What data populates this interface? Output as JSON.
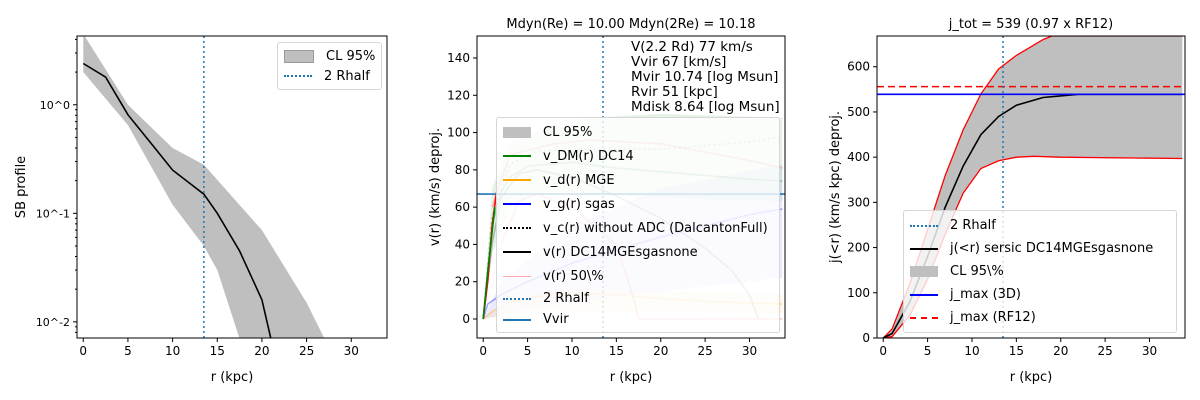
{
  "chart_data": [
    {
      "type": "line",
      "title": "",
      "xlabel": "r (kpc)",
      "ylabel": "SB profile",
      "yscale": "log",
      "xlim": [
        -0.7,
        34
      ],
      "ylim": [
        0.0071,
        4.3
      ],
      "xticks": [
        0,
        5,
        10,
        15,
        20,
        25,
        30
      ],
      "yticks": [
        {
          "v": 1,
          "label": "10^0"
        },
        {
          "v": 0.1,
          "label": "10^-1"
        },
        {
          "v": 0.01,
          "label": "10^-2"
        }
      ],
      "legend": {
        "placement": "top-right",
        "entries": [
          "CL 95%",
          "2 Rhalf"
        ]
      },
      "band": {
        "name": "CL 95%",
        "color": "#bfbfbf",
        "upper": [
          [
            0,
            4.5
          ],
          [
            5,
            1.0
          ],
          [
            10,
            0.4
          ],
          [
            13.5,
            0.28
          ],
          [
            20,
            0.07
          ],
          [
            25,
            0.015
          ],
          [
            27,
            0.007
          ]
        ],
        "lower": [
          [
            0,
            2.0
          ],
          [
            5,
            0.65
          ],
          [
            10,
            0.12
          ],
          [
            13.5,
            0.05
          ],
          [
            15,
            0.03
          ],
          [
            17.5,
            0.007
          ]
        ]
      },
      "series": [
        {
          "color": "#000000",
          "style": "solid",
          "points": [
            [
              0,
              2.4
            ],
            [
              2.5,
              1.8
            ],
            [
              5,
              0.81
            ],
            [
              7.5,
              0.45
            ],
            [
              10,
              0.25
            ],
            [
              13.5,
              0.15
            ],
            [
              15,
              0.1
            ],
            [
              17.5,
              0.045
            ],
            [
              20,
              0.016
            ],
            [
              21,
              0.007
            ]
          ]
        }
      ],
      "vlines": [
        {
          "name": "2 Rhalf",
          "x": 13.5,
          "color": "#1f77b4",
          "style": "dotted"
        }
      ]
    },
    {
      "type": "line",
      "title": "Mdyn(Re) = 10.00  Mdyn(2Re) = 10.18",
      "xlabel": "r (kpc)",
      "ylabel": "v(r) (km/s) deproj.",
      "xlim": [
        -0.7,
        34
      ],
      "ylim": [
        -10.2,
        151.8
      ],
      "xticks": [
        0,
        5,
        10,
        15,
        20,
        25,
        30
      ],
      "yticks": [
        0,
        20,
        40,
        60,
        80,
        100,
        120,
        140
      ],
      "annotations": [
        "V(2.2 Rd) 77 km/s",
        "Vvir 67 [km/s]",
        "Mvir 10.74 [log Msun]",
        "Rvir 51 [kpc]",
        "Mdisk 8.64 [log Msun]"
      ],
      "legend": {
        "placement": "center-left",
        "entries": [
          "CL 95%",
          "v_DM(r) DC14",
          "v_d(r) MGE",
          "v_g(r) sgas",
          "v_c(r) without ADC (DalcantonFull)",
          "v(r) DC14MGEsgasnone",
          "v(r) 50\\%",
          "2 Rhalf",
          "Vvir"
        ]
      },
      "bands": [
        {
          "color": "#008000",
          "opacity": 0.1,
          "upper": [
            [
              0,
              0
            ],
            [
              1,
              70
            ],
            [
              3,
              95
            ],
            [
              8,
              104
            ],
            [
              12,
              108
            ],
            [
              20,
              110
            ],
            [
              33.7,
              108
            ]
          ],
          "lower": [
            [
              0,
              0
            ],
            [
              1,
              35
            ],
            [
              3,
              60
            ],
            [
              6,
              68
            ],
            [
              10,
              68
            ],
            [
              20,
              65
            ],
            [
              33.7,
              63
            ]
          ]
        },
        {
          "color": "#0000ff",
          "opacity": 0.08,
          "upper": [
            [
              0,
              0
            ],
            [
              2,
              20
            ],
            [
              10,
              50
            ],
            [
              20,
              70
            ],
            [
              33.7,
              83
            ]
          ],
          "lower": [
            [
              0,
              0
            ],
            [
              5,
              5
            ],
            [
              15,
              12
            ],
            [
              33.7,
              22
            ]
          ]
        },
        {
          "color": "#ffa500",
          "opacity": 0.1,
          "upper": [
            [
              0,
              0
            ],
            [
              3,
              12
            ],
            [
              10,
              17
            ],
            [
              20,
              15
            ],
            [
              33.7,
              13
            ]
          ],
          "lower": [
            [
              0,
              0
            ],
            [
              5,
              4
            ],
            [
              20,
              4
            ],
            [
              33.7,
              3
            ]
          ]
        }
      ],
      "series": [
        {
          "name": "v_DM(r) DC14",
          "color": "#008000",
          "style": "solid",
          "opacity": 0.35,
          "points": [
            [
              0,
              0
            ],
            [
              1,
              50
            ],
            [
              2,
              68
            ],
            [
              3,
              76
            ],
            [
              5,
              82
            ],
            [
              10,
              84
            ],
            [
              15,
              81
            ],
            [
              20,
              79
            ],
            [
              25,
              77
            ],
            [
              30,
              75
            ],
            [
              33.7,
              74
            ]
          ]
        },
        {
          "name": "v_d(r) MGE",
          "color": "#ffa500",
          "style": "solid",
          "opacity": 0.35,
          "points": [
            [
              0,
              0
            ],
            [
              1,
              4
            ],
            [
              3,
              9
            ],
            [
              6,
              12
            ],
            [
              10,
              14
            ],
            [
              15,
              13
            ],
            [
              20,
              11
            ],
            [
              25,
              9.5
            ],
            [
              30,
              8.5
            ],
            [
              33.7,
              8
            ]
          ]
        },
        {
          "name": "v_g(r) sgas",
          "color": "#0000ff",
          "style": "solid",
          "opacity": 0.35,
          "points": [
            [
              0,
              0
            ],
            [
              0.5,
              8
            ],
            [
              2,
              13
            ],
            [
              5,
              20
            ],
            [
              10,
              30
            ],
            [
              15,
              37
            ],
            [
              20,
              44
            ],
            [
              25,
              50
            ],
            [
              30,
              56
            ],
            [
              33.7,
              59
            ]
          ]
        },
        {
          "name": "v_c(r) without ADC (DalcantonFull)",
          "color": "#888888",
          "style": "dotted",
          "opacity": 0.6,
          "points": [
            [
              0,
              0
            ],
            [
              1,
              55
            ],
            [
              3,
              83
            ],
            [
              6,
              90
            ],
            [
              10,
              91
            ],
            [
              20,
              91
            ],
            [
              30,
              95
            ],
            [
              33.7,
              98
            ]
          ]
        },
        {
          "name": "v(r) DC14MGEsgasnone",
          "color": "#000000",
          "style": "solid",
          "opacity": 0.25,
          "points": [
            [
              0,
              0
            ],
            [
              1,
              40
            ],
            [
              2,
              65
            ],
            [
              4,
              78
            ],
            [
              6,
              80
            ],
            [
              10,
              76
            ],
            [
              15,
              66
            ],
            [
              20,
              54
            ],
            [
              25,
              38
            ],
            [
              28,
              26
            ],
            [
              30,
              13
            ],
            [
              31,
              0
            ]
          ]
        },
        {
          "name": "v(r) 50\\% upper",
          "color": "#ff0000",
          "style": "solid",
          "opacity": 0.25,
          "points": [
            [
              1,
              60
            ],
            [
              3,
              88
            ],
            [
              8,
              94
            ],
            [
              12,
              96
            ],
            [
              20,
              94
            ],
            [
              30,
              85
            ],
            [
              33.7,
              81
            ]
          ]
        },
        {
          "name": "v(r) 50\\% lower",
          "color": "#ff0000",
          "style": "solid",
          "opacity": 0.25,
          "points": [
            [
              2,
              40
            ],
            [
              4,
              63
            ],
            [
              6,
              67
            ],
            [
              10,
              60
            ],
            [
              15,
              40
            ],
            [
              17,
              10
            ],
            [
              17.5,
              0
            ],
            [
              33.7,
              0
            ]
          ]
        },
        {
          "color": "#ff0000",
          "style": "solid",
          "opacity": 1,
          "points": [
            [
              0,
              0
            ],
            [
              0.5,
              20
            ],
            [
              1,
              50
            ],
            [
              1.5,
              68
            ]
          ]
        },
        {
          "color": "#008000",
          "style": "solid",
          "opacity": 1,
          "points": [
            [
              0,
              0
            ],
            [
              0.5,
              25
            ],
            [
              1.3,
              60
            ]
          ]
        }
      ],
      "hlines": [
        {
          "name": "Vvir",
          "y": 67,
          "color": "#1f77b4",
          "style": "solid"
        }
      ],
      "vlines": [
        {
          "name": "2 Rhalf",
          "x": 13.5,
          "color": "#1f77b4",
          "style": "dotted"
        }
      ]
    },
    {
      "type": "line",
      "title": "j_tot = 539 (0.97 x RF12)",
      "xlabel": "r (kpc)",
      "ylabel": "j(<r) (km/s kpc) deproj.",
      "xlim": [
        -0.7,
        34
      ],
      "ylim": [
        0,
        668
      ],
      "xticks": [
        0,
        5,
        10,
        15,
        20,
        25,
        30
      ],
      "yticks": [
        0,
        100,
        200,
        300,
        400,
        500,
        600
      ],
      "legend": {
        "placement": "lower-right",
        "entries": [
          "2 Rhalf",
          "j(<r) sersic DC14MGEsgasnone",
          "CL 95\\%",
          "j_max (3D)",
          "j_max (RF12)"
        ]
      },
      "band": {
        "name": "CL 95\\%",
        "color": "#bfbfbf",
        "upper": [
          [
            0,
            0
          ],
          [
            1,
            20
          ],
          [
            3,
            120
          ],
          [
            5,
            240
          ],
          [
            7,
            360
          ],
          [
            9,
            460
          ],
          [
            11,
            540
          ],
          [
            13,
            595
          ],
          [
            15,
            625
          ],
          [
            18,
            660
          ],
          [
            19,
            668
          ],
          [
            33.7,
            668
          ]
        ],
        "lower": [
          [
            0,
            0
          ],
          [
            1,
            3
          ],
          [
            3,
            50
          ],
          [
            5,
            130
          ],
          [
            7,
            230
          ],
          [
            9,
            320
          ],
          [
            11,
            375
          ],
          [
            13,
            392
          ],
          [
            15,
            400
          ],
          [
            17,
            402
          ],
          [
            20,
            400
          ],
          [
            33.7,
            397
          ]
        ],
        "edge": "#ff0000"
      },
      "series": [
        {
          "name": "j(<r) sersic DC14MGEsgasnone",
          "color": "#000000",
          "style": "solid",
          "points": [
            [
              0,
              0
            ],
            [
              1,
              10
            ],
            [
              3,
              80
            ],
            [
              5,
              180
            ],
            [
              7,
              290
            ],
            [
              9,
              380
            ],
            [
              11,
              450
            ],
            [
              13,
              490
            ],
            [
              15,
              515
            ],
            [
              18,
              532
            ],
            [
              22,
              539
            ],
            [
              33.7,
              539
            ]
          ]
        }
      ],
      "hlines": [
        {
          "name": "j_max (3D)",
          "y": 539,
          "color": "#0000ff",
          "style": "solid"
        },
        {
          "name": "j_max (RF12)",
          "y": 556,
          "color": "#ff0000",
          "style": "dashed"
        }
      ],
      "vlines": [
        {
          "name": "2 Rhalf",
          "x": 13.5,
          "color": "#1f77b4",
          "style": "dotted"
        }
      ]
    }
  ]
}
